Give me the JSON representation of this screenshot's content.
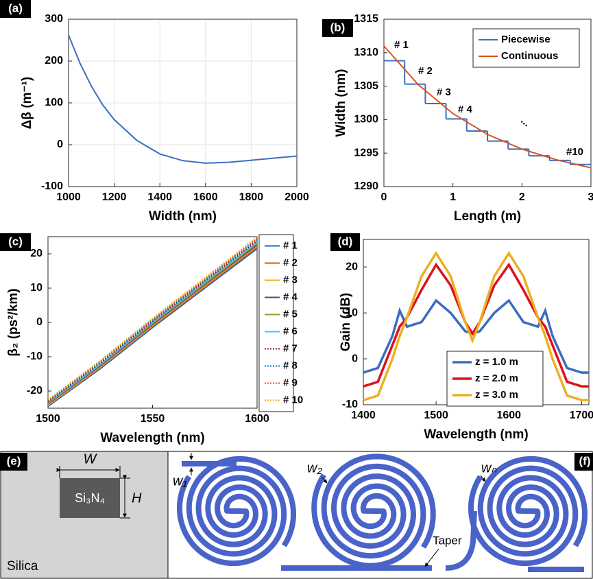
{
  "chart_data": [
    {
      "type": "line",
      "panel_label": "(a)",
      "xlabel": "Width (nm)",
      "ylabel": "Δβ (m⁻¹)",
      "x": [
        1000,
        1050,
        1100,
        1150,
        1200,
        1300,
        1400,
        1500,
        1600,
        1700,
        1800,
        1900,
        2000
      ],
      "series": [
        {
          "color": "#3b6fc4",
          "values": [
            262,
            195,
            140,
            95,
            60,
            10,
            -22,
            -38,
            -44,
            -42,
            -37,
            -32,
            -27
          ]
        }
      ],
      "xlim": [
        1000,
        2000
      ],
      "xticks": [
        1000,
        1200,
        1400,
        1600,
        1800,
        2000
      ],
      "ylim": [
        -100,
        300
      ],
      "yticks": [
        -100,
        0,
        100,
        200,
        300
      ],
      "grid": true
    },
    {
      "type": "line",
      "panel_label": "(b)",
      "xlabel": "Length (m)",
      "ylabel": "Width (nm)",
      "series": [
        {
          "name": "Piecewise",
          "color": "#3b6fc4",
          "bins": [
            0,
            0.3,
            0.6,
            0.9,
            1.2,
            1.5,
            1.8,
            2.1,
            2.4,
            2.7,
            3.0
          ],
          "values": [
            1308.8,
            1305.3,
            1302.4,
            1300.1,
            1298.3,
            1296.8,
            1295.6,
            1294.6,
            1293.9,
            1293.3
          ]
        },
        {
          "name": "Continuous",
          "color": "#d9541a",
          "x": [
            0,
            0.5,
            1,
            1.5,
            2,
            2.5,
            3
          ],
          "values": [
            1311,
            1305.2,
            1300.9,
            1297.8,
            1295.6,
            1294.0,
            1292.8
          ]
        }
      ],
      "annotations": [
        "# 1",
        "# 2",
        "# 3",
        "# 4",
        "...",
        "#10"
      ],
      "xlim": [
        0,
        3
      ],
      "xticks": [
        0,
        1,
        2,
        3
      ],
      "ylim": [
        1290,
        1315
      ],
      "yticks": [
        1290,
        1295,
        1300,
        1305,
        1310,
        1315
      ],
      "grid": false,
      "legend": "top-right"
    },
    {
      "type": "line",
      "panel_label": "(c)",
      "xlabel": "Wavelength (nm)",
      "ylabel": "β₂ (ps²/km)",
      "x": [
        1500,
        1525,
        1550,
        1575,
        1600
      ],
      "series": [
        {
          "name": "# 1",
          "color": "#0072bd",
          "dash": "solid",
          "values": [
            -24.5,
            -13.5,
            -1.5,
            10,
            21.5
          ]
        },
        {
          "name": "# 2",
          "color": "#d95319",
          "dash": "solid",
          "values": [
            -24.3,
            -13.2,
            -1.2,
            10.3,
            21.9
          ]
        },
        {
          "name": "# 3",
          "color": "#edb120",
          "dash": "solid",
          "values": [
            -24.1,
            -13.0,
            -0.9,
            10.7,
            22.3
          ]
        },
        {
          "name": "# 4",
          "color": "#7e2f8e",
          "dash": "solid",
          "values": [
            -23.8,
            -12.7,
            -0.6,
            11.0,
            22.6
          ]
        },
        {
          "name": "# 5",
          "color": "#77ac30",
          "dash": "solid",
          "values": [
            -23.6,
            -12.4,
            -0.3,
            11.3,
            23.0
          ]
        },
        {
          "name": "# 6",
          "color": "#4dbeee",
          "dash": "solid",
          "values": [
            -23.4,
            -12.2,
            0.0,
            11.7,
            23.4
          ]
        },
        {
          "name": "# 7",
          "color": "#a2142f",
          "dash": "dotted",
          "values": [
            -23.2,
            -11.9,
            0.3,
            12.0,
            23.8
          ]
        },
        {
          "name": "# 8",
          "color": "#0072bd",
          "dash": "dotted",
          "values": [
            -23.0,
            -11.6,
            0.6,
            12.3,
            24.2
          ]
        },
        {
          "name": "# 9",
          "color": "#d95319",
          "dash": "dotted",
          "values": [
            -22.7,
            -11.3,
            0.9,
            12.6,
            24.5
          ]
        },
        {
          "name": "# 10",
          "color": "#edb120",
          "dash": "dotted",
          "values": [
            -22.5,
            -11.1,
            1.2,
            13.0,
            24.9
          ]
        }
      ],
      "xlim": [
        1500,
        1600
      ],
      "xticks": [
        1500,
        1550,
        1600
      ],
      "ylim": [
        -25,
        25
      ],
      "yticks": [
        -20,
        -10,
        0,
        10,
        20
      ],
      "grid": false,
      "legend": "outside-right"
    },
    {
      "type": "line",
      "panel_label": "(d)",
      "xlabel": "Wavelength (nm)",
      "ylabel": "Gain (dB)",
      "x": [
        1400,
        1420,
        1440,
        1450,
        1460,
        1480,
        1500,
        1520,
        1540,
        1550,
        1560,
        1580,
        1600,
        1620,
        1640,
        1650,
        1660,
        1680,
        1700,
        1710
      ],
      "series": [
        {
          "name": "z = 1.0 m",
          "color": "#3a6dc0",
          "values": [
            -3,
            -2,
            5,
            10.5,
            7,
            8,
            12.7,
            10,
            6,
            5.5,
            6,
            10,
            12.7,
            8,
            7,
            10.5,
            5,
            -2,
            -3,
            -3
          ]
        },
        {
          "name": "z = 2.0 m",
          "color": "#e0101a",
          "values": [
            -6,
            -5,
            3,
            7,
            9,
            15,
            20.5,
            16,
            8,
            5.5,
            8,
            16,
            20.5,
            15,
            9,
            7,
            3,
            -5,
            -6,
            -6
          ]
        },
        {
          "name": "z = 3.0 m",
          "color": "#ebb022",
          "values": [
            -9,
            -8,
            0,
            5,
            9,
            18,
            23,
            18,
            8,
            4,
            8,
            18,
            23,
            18,
            9,
            5,
            0,
            -8,
            -9,
            -9
          ]
        }
      ],
      "xlim": [
        1400,
        1710
      ],
      "xticks": [
        1400,
        1500,
        1600,
        1700
      ],
      "ylim": [
        -10,
        26
      ],
      "yticks": [
        -10,
        0,
        10,
        20
      ],
      "grid": false,
      "legend": "bottom-center"
    }
  ],
  "diagrams": {
    "e": {
      "label": "(e)",
      "width": "W",
      "height": "H",
      "core": "Si₃N₄",
      "cladding": "Silica"
    },
    "f": {
      "label": "(f)",
      "w1": "w₁",
      "w2": "w₂",
      "wn": "wₙ",
      "taper": "Taper"
    }
  }
}
